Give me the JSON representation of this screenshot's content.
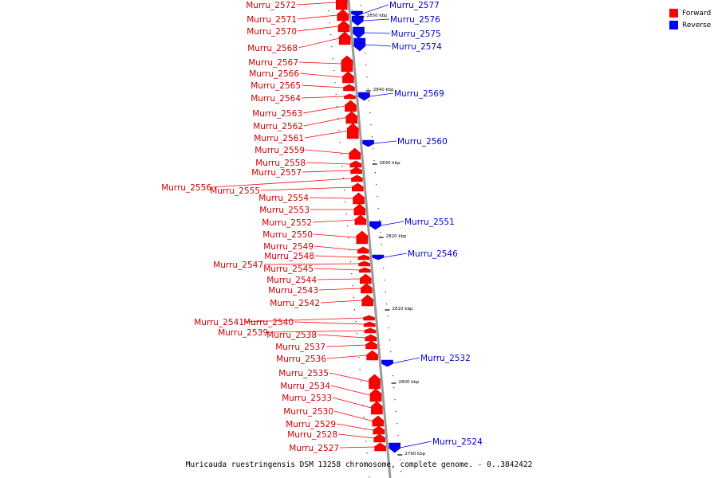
{
  "caption": "Muricauda ruestringensis DSM 13258 chromosome, complete genome. - 0..3842422",
  "legend": {
    "forward": {
      "label": "Forward",
      "color": "#ff0000"
    },
    "reverse": {
      "label": "Reverse",
      "color": "#0000ff"
    }
  },
  "colors": {
    "forward": "#ff0000",
    "reverse": "#0000ff",
    "backbone": "#999999",
    "tick": "#000000"
  },
  "ticks": [
    {
      "label": "2850 kbp"
    },
    {
      "label": "2840 kbp"
    },
    {
      "label": "2830 kbp"
    },
    {
      "label": "2820 kbp"
    },
    {
      "label": "2810 kbp"
    },
    {
      "label": "2800 kbp"
    },
    {
      "label": "2790 kbp"
    }
  ],
  "forward_genes": [
    "Murru_2572",
    "Murru_2571",
    "Murru_2570",
    "Murru_2568",
    "Murru_2567",
    "Murru_2566",
    "Murru_2565",
    "Murru_2564",
    "Murru_2563",
    "Murru_2562",
    "Murru_2561",
    "Murru_2559",
    "Murru_2558",
    "Murru_2557",
    "Murru_2556",
    "Murru_2555",
    "Murru_2554",
    "Murru_2553",
    "Murru_2552",
    "Murru_2550",
    "Murru_2549",
    "Murru_2548",
    "Murru_2547",
    "Murru_2545",
    "Murru_2544",
    "Murru_2543",
    "Murru_2542",
    "Murru_2541",
    "Murru_2540",
    "Murru_2539",
    "Murru_2538",
    "Murru_2537",
    "Murru_2536",
    "Murru_2535",
    "Murru_2534",
    "Murru_2533",
    "Murru_2530",
    "Murru_2529",
    "Murru_2528",
    "Murru_2527"
  ],
  "reverse_genes": [
    "Murru_2577",
    "Murru_2576",
    "Murru_2575",
    "Murru_2574",
    "Murru_2569",
    "Murru_2560",
    "Murru_2551",
    "Murru_2546",
    "Murru_2532",
    "Murru_2524"
  ]
}
